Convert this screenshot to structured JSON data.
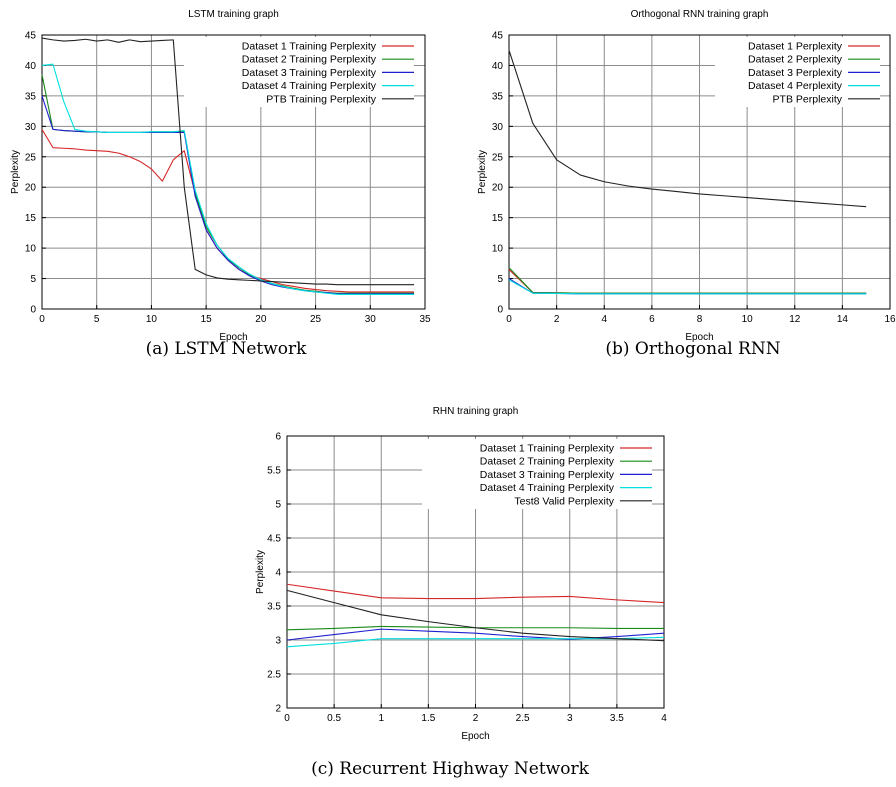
{
  "colors": {
    "red": "#d62728",
    "green": "#1a8a1a",
    "blue": "#1f1fd0",
    "cyan": "#00e0e0",
    "black": "#222222",
    "grid": "#8c8c8c",
    "frame": "#000000"
  },
  "chart_data": [
    {
      "type": "line",
      "title": "LSTM training graph",
      "xlabel": "Epoch",
      "ylabel": "Perplexity",
      "caption": "(a) LSTM Network",
      "xlim": [
        0,
        35
      ],
      "ylim": [
        0,
        45
      ],
      "xticks": [
        0,
        5,
        10,
        15,
        20,
        25,
        30,
        35
      ],
      "yticks": [
        0,
        5,
        10,
        15,
        20,
        25,
        30,
        35,
        40,
        45
      ],
      "grid": true,
      "legend_position": "top-right",
      "series": [
        {
          "name": "Dataset 1 Training Perplexity",
          "color": "red",
          "x": [
            0,
            1,
            2,
            3,
            4,
            5,
            6,
            7,
            8,
            9,
            10,
            11,
            12,
            13,
            14,
            15,
            16,
            17,
            18,
            19,
            20,
            21,
            22,
            23,
            24,
            25,
            26,
            27,
            28,
            29,
            30,
            31,
            32,
            33,
            34
          ],
          "y": [
            29.5,
            26.5,
            26.4,
            26.3,
            26.1,
            26.0,
            25.9,
            25.6,
            25.0,
            24.2,
            23.0,
            21.0,
            24.5,
            26.0,
            19.0,
            13.0,
            10.0,
            8.0,
            6.5,
            5.5,
            5.0,
            4.5,
            4.0,
            3.7,
            3.4,
            3.2,
            3.0,
            2.9,
            2.8,
            2.8,
            2.8,
            2.8,
            2.8,
            2.8,
            2.8
          ]
        },
        {
          "name": "Dataset 2 Training Perplexity",
          "color": "green",
          "x": [
            0,
            1,
            2,
            3,
            4,
            5,
            6,
            7,
            8,
            9,
            10,
            11,
            12,
            13,
            14,
            15,
            16,
            17,
            18,
            19,
            20,
            21,
            22,
            23,
            24,
            25,
            26,
            27,
            28,
            29,
            30,
            31,
            32,
            33,
            34
          ],
          "y": [
            38.5,
            29.5,
            29.3,
            29.2,
            29.1,
            29.1,
            29.0,
            29.0,
            29.0,
            29.0,
            29.1,
            29.1,
            29.1,
            29.2,
            19.0,
            13.5,
            10.5,
            8.2,
            6.8,
            5.6,
            4.8,
            4.2,
            3.8,
            3.4,
            3.1,
            2.9,
            2.7,
            2.6,
            2.6,
            2.6,
            2.6,
            2.6,
            2.6,
            2.6,
            2.6
          ]
        },
        {
          "name": "Dataset 3 Training Perplexity",
          "color": "blue",
          "x": [
            0,
            1,
            2,
            3,
            4,
            5,
            6,
            7,
            8,
            9,
            10,
            11,
            12,
            13,
            14,
            15,
            16,
            17,
            18,
            19,
            20,
            21,
            22,
            23,
            24,
            25,
            26,
            27,
            28,
            29,
            30,
            31,
            32,
            33,
            34
          ],
          "y": [
            35.0,
            29.5,
            29.3,
            29.2,
            29.1,
            29.1,
            29.0,
            29.0,
            29.0,
            29.0,
            29.0,
            29.0,
            29.0,
            29.0,
            18.5,
            13.0,
            10.0,
            8.0,
            6.5,
            5.4,
            4.6,
            4.0,
            3.6,
            3.3,
            3.0,
            2.8,
            2.7,
            2.5,
            2.5,
            2.5,
            2.5,
            2.5,
            2.5,
            2.5,
            2.5
          ]
        },
        {
          "name": "Dataset 4 Training Perplexity",
          "color": "cyan",
          "x": [
            0,
            1,
            2,
            3,
            4,
            5,
            6,
            7,
            8,
            9,
            10,
            11,
            12,
            13,
            14,
            15,
            16,
            17,
            18,
            19,
            20,
            21,
            22,
            23,
            24,
            25,
            26,
            27,
            28,
            29,
            30,
            31,
            32,
            33,
            34
          ],
          "y": [
            40.0,
            40.2,
            34.0,
            29.5,
            29.2,
            29.1,
            29.0,
            29.0,
            29.0,
            29.0,
            29.1,
            29.1,
            29.1,
            29.3,
            19.5,
            14.0,
            10.5,
            8.3,
            6.9,
            5.7,
            4.8,
            4.2,
            3.7,
            3.3,
            3.0,
            2.8,
            2.6,
            2.4,
            2.4,
            2.4,
            2.4,
            2.4,
            2.4,
            2.4,
            2.4
          ]
        },
        {
          "name": "PTB Training Perplexity",
          "color": "black",
          "x": [
            0,
            1,
            2,
            3,
            4,
            5,
            6,
            7,
            8,
            9,
            10,
            11,
            12,
            13,
            14,
            15,
            16,
            17,
            18,
            19,
            20,
            21,
            22,
            23,
            24,
            25,
            26,
            27,
            28,
            29,
            30,
            31,
            32,
            33,
            34
          ],
          "y": [
            44.5,
            44.2,
            44.0,
            44.1,
            44.3,
            44.0,
            44.2,
            43.8,
            44.2,
            43.9,
            44.0,
            44.1,
            44.2,
            20.0,
            6.5,
            5.6,
            5.1,
            4.9,
            4.8,
            4.7,
            4.6,
            4.5,
            4.4,
            4.3,
            4.2,
            4.1,
            4.1,
            4.0,
            4.0,
            4.0,
            4.0,
            4.0,
            4.0,
            4.0,
            4.0
          ]
        }
      ]
    },
    {
      "type": "line",
      "title": "Orthogonal RNN training graph",
      "xlabel": "Epoch",
      "ylabel": "Perplexity",
      "caption": "(b) Orthogonal RNN",
      "xlim": [
        0,
        16
      ],
      "ylim": [
        0,
        45
      ],
      "xticks": [
        0,
        2,
        4,
        6,
        8,
        10,
        12,
        14,
        16
      ],
      "yticks": [
        0,
        5,
        10,
        15,
        20,
        25,
        30,
        35,
        40,
        45
      ],
      "grid": true,
      "legend_position": "top-right",
      "series": [
        {
          "name": "Dataset 1 Perplexity",
          "color": "red",
          "x": [
            0,
            1,
            2,
            3,
            4,
            5,
            6,
            7,
            8,
            9,
            10,
            11,
            12,
            13,
            14,
            15
          ],
          "y": [
            6.5,
            2.7,
            2.65,
            2.6,
            2.6,
            2.6,
            2.6,
            2.6,
            2.6,
            2.6,
            2.6,
            2.6,
            2.6,
            2.6,
            2.6,
            2.6
          ]
        },
        {
          "name": "Dataset 2 Perplexity",
          "color": "green",
          "x": [
            0,
            1,
            2,
            3,
            4,
            5,
            6,
            7,
            8,
            9,
            10,
            11,
            12,
            13,
            14,
            15
          ],
          "y": [
            6.8,
            2.7,
            2.65,
            2.6,
            2.6,
            2.6,
            2.6,
            2.6,
            2.6,
            2.6,
            2.6,
            2.6,
            2.6,
            2.6,
            2.6,
            2.6
          ]
        },
        {
          "name": "Dataset 3 Perplexity",
          "color": "blue",
          "x": [
            0,
            1,
            2,
            3,
            4,
            5,
            6,
            7,
            8,
            9,
            10,
            11,
            12,
            13,
            14,
            15
          ],
          "y": [
            5.0,
            2.6,
            2.55,
            2.5,
            2.5,
            2.5,
            2.5,
            2.5,
            2.5,
            2.5,
            2.5,
            2.5,
            2.5,
            2.5,
            2.5,
            2.5
          ]
        },
        {
          "name": "Dataset 4 Perplexity",
          "color": "cyan",
          "x": [
            0,
            1,
            2,
            3,
            4,
            5,
            6,
            7,
            8,
            9,
            10,
            11,
            12,
            13,
            14,
            15
          ],
          "y": [
            4.8,
            2.6,
            2.55,
            2.5,
            2.5,
            2.5,
            2.5,
            2.5,
            2.5,
            2.5,
            2.5,
            2.5,
            2.5,
            2.5,
            2.5,
            2.5
          ]
        },
        {
          "name": "PTB Perplexity",
          "color": "black",
          "x": [
            0,
            1,
            2,
            3,
            4,
            5,
            6,
            7,
            8,
            9,
            10,
            11,
            12,
            13,
            14,
            15
          ],
          "y": [
            42.5,
            30.5,
            24.5,
            22.0,
            20.9,
            20.2,
            19.7,
            19.3,
            18.9,
            18.6,
            18.3,
            18.0,
            17.7,
            17.4,
            17.1,
            16.8
          ]
        }
      ]
    },
    {
      "type": "line",
      "title": "RHN training graph",
      "xlabel": "Epoch",
      "ylabel": "Perplexity",
      "caption": "(c) Recurrent Highway Network",
      "xlim": [
        0,
        4
      ],
      "ylim": [
        2,
        6
      ],
      "xticks": [
        0,
        0.5,
        1,
        1.5,
        2,
        2.5,
        3,
        3.5,
        4
      ],
      "yticks": [
        2,
        2.5,
        3,
        3.5,
        4,
        4.5,
        5,
        5.5,
        6
      ],
      "grid": true,
      "legend_position": "top-right",
      "series": [
        {
          "name": "Dataset 1 Training Perplexity",
          "color": "red",
          "x": [
            0,
            0.5,
            1,
            1.5,
            2,
            2.5,
            3,
            3.5,
            4
          ],
          "y": [
            3.82,
            3.72,
            3.62,
            3.61,
            3.61,
            3.63,
            3.64,
            3.59,
            3.55
          ]
        },
        {
          "name": "Dataset 2 Training Perplexity",
          "color": "green",
          "x": [
            0,
            0.5,
            1,
            1.5,
            2,
            2.5,
            3,
            3.5,
            4
          ],
          "y": [
            3.15,
            3.17,
            3.2,
            3.19,
            3.18,
            3.18,
            3.18,
            3.17,
            3.17
          ]
        },
        {
          "name": "Dataset 3 Training Perplexity",
          "color": "blue",
          "x": [
            0,
            0.5,
            1,
            1.5,
            2,
            2.5,
            3,
            3.5,
            4
          ],
          "y": [
            3.0,
            3.08,
            3.16,
            3.13,
            3.1,
            3.05,
            3.01,
            3.05,
            3.1
          ]
        },
        {
          "name": "Dataset 4 Training Perplexity",
          "color": "cyan",
          "x": [
            0,
            0.5,
            1,
            1.5,
            2,
            2.5,
            3,
            3.5,
            4
          ],
          "y": [
            2.9,
            2.95,
            3.02,
            3.02,
            3.02,
            3.02,
            3.02,
            3.02,
            3.04
          ]
        },
        {
          "name": "Test8 Valid Perplexity",
          "color": "black",
          "x": [
            0,
            0.5,
            1,
            1.5,
            2,
            2.5,
            3,
            3.5,
            4
          ],
          "y": [
            3.73,
            3.55,
            3.37,
            3.27,
            3.18,
            3.1,
            3.05,
            3.02,
            2.99
          ]
        }
      ]
    }
  ]
}
